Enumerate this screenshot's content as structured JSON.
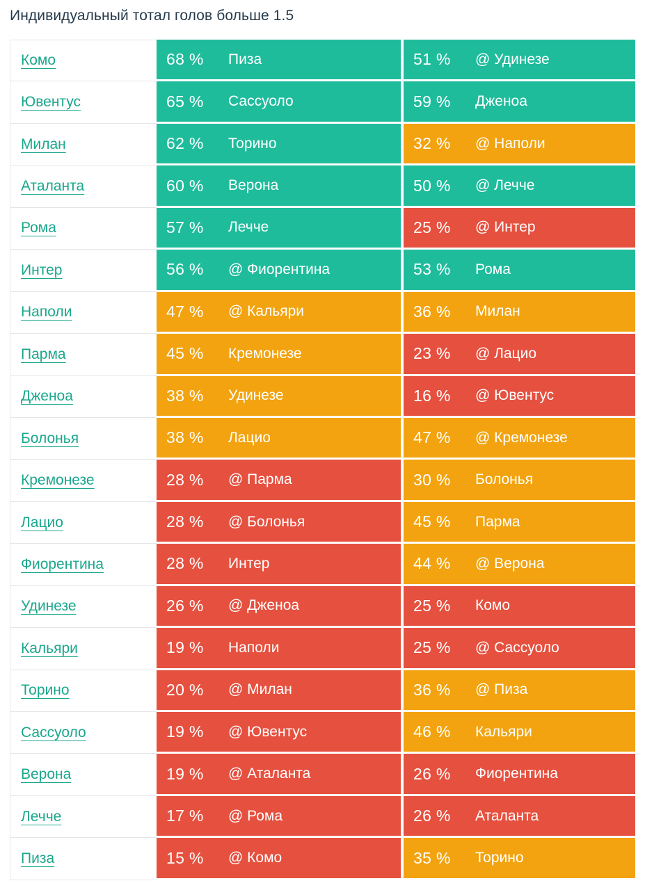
{
  "title": "Индивидуальный тотал голов больше 1.5",
  "colors": {
    "green": "#1FBC9C",
    "orange": "#F2A30F",
    "red": "#E6503F",
    "link": "#1AA78C",
    "title_text": "#263A4C",
    "row_border": "#E5E5E5"
  },
  "table": {
    "rows": [
      {
        "team": "Комо",
        "pct1": "68 %",
        "opp1": "Пиза",
        "level1": "green",
        "pct2": "51 %",
        "opp2": "@ Удинезе",
        "level2": "green"
      },
      {
        "team": "Ювентус",
        "pct1": "65 %",
        "opp1": "Сассуоло",
        "level1": "green",
        "pct2": "59 %",
        "opp2": "Дженоа",
        "level2": "green"
      },
      {
        "team": "Милан",
        "pct1": "62 %",
        "opp1": "Торино",
        "level1": "green",
        "pct2": "32 %",
        "opp2": "@ Наполи",
        "level2": "orange"
      },
      {
        "team": "Аталанта",
        "pct1": "60 %",
        "opp1": "Верона",
        "level1": "green",
        "pct2": "50 %",
        "opp2": "@ Лечче",
        "level2": "green"
      },
      {
        "team": "Рома",
        "pct1": "57 %",
        "opp1": "Лечче",
        "level1": "green",
        "pct2": "25 %",
        "opp2": "@ Интер",
        "level2": "red"
      },
      {
        "team": "Интер",
        "pct1": "56 %",
        "opp1": "@ Фиорентина",
        "level1": "green",
        "pct2": "53 %",
        "opp2": "Рома",
        "level2": "green"
      },
      {
        "team": "Наполи",
        "pct1": "47 %",
        "opp1": "@ Кальяри",
        "level1": "orange",
        "pct2": "36 %",
        "opp2": "Милан",
        "level2": "orange"
      },
      {
        "team": "Парма",
        "pct1": "45 %",
        "opp1": "Кремонезе",
        "level1": "orange",
        "pct2": "23 %",
        "opp2": "@ Лацио",
        "level2": "red"
      },
      {
        "team": "Дженоа",
        "pct1": "38 %",
        "opp1": "Удинезе",
        "level1": "orange",
        "pct2": "16 %",
        "opp2": "@ Ювентус",
        "level2": "red"
      },
      {
        "team": "Болонья",
        "pct1": "38 %",
        "opp1": "Лацио",
        "level1": "orange",
        "pct2": "47 %",
        "opp2": "@ Кремонезе",
        "level2": "orange"
      },
      {
        "team": "Кремонезе",
        "pct1": "28 %",
        "opp1": "@ Парма",
        "level1": "red",
        "pct2": "30 %",
        "opp2": "Болонья",
        "level2": "orange"
      },
      {
        "team": "Лацио",
        "pct1": "28 %",
        "opp1": "@ Болонья",
        "level1": "red",
        "pct2": "45 %",
        "opp2": "Парма",
        "level2": "orange"
      },
      {
        "team": "Фиорентина",
        "pct1": "28 %",
        "opp1": "Интер",
        "level1": "red",
        "pct2": "44 %",
        "opp2": "@ Верона",
        "level2": "orange"
      },
      {
        "team": "Удинезе",
        "pct1": "26 %",
        "opp1": "@ Дженоа",
        "level1": "red",
        "pct2": "25 %",
        "opp2": "Комо",
        "level2": "red"
      },
      {
        "team": "Кальяри",
        "pct1": "19 %",
        "opp1": "Наполи",
        "level1": "red",
        "pct2": "25 %",
        "opp2": "@ Сассуоло",
        "level2": "red"
      },
      {
        "team": "Торино",
        "pct1": "20 %",
        "opp1": "@ Милан",
        "level1": "red",
        "pct2": "36 %",
        "opp2": "@ Пиза",
        "level2": "orange"
      },
      {
        "team": "Сассуоло",
        "pct1": "19 %",
        "opp1": "@ Ювентус",
        "level1": "red",
        "pct2": "46 %",
        "opp2": "Кальяри",
        "level2": "orange"
      },
      {
        "team": "Верона",
        "pct1": "19 %",
        "opp1": "@ Аталанта",
        "level1": "red",
        "pct2": "26 %",
        "opp2": "Фиорентина",
        "level2": "red"
      },
      {
        "team": "Лечче",
        "pct1": "17 %",
        "opp1": "@ Рома",
        "level1": "red",
        "pct2": "26 %",
        "opp2": "Аталанта",
        "level2": "red"
      },
      {
        "team": "Пиза",
        "pct1": "15 %",
        "opp1": "@ Комо",
        "level1": "red",
        "pct2": "35 %",
        "opp2": "Торино",
        "level2": "orange"
      }
    ]
  }
}
